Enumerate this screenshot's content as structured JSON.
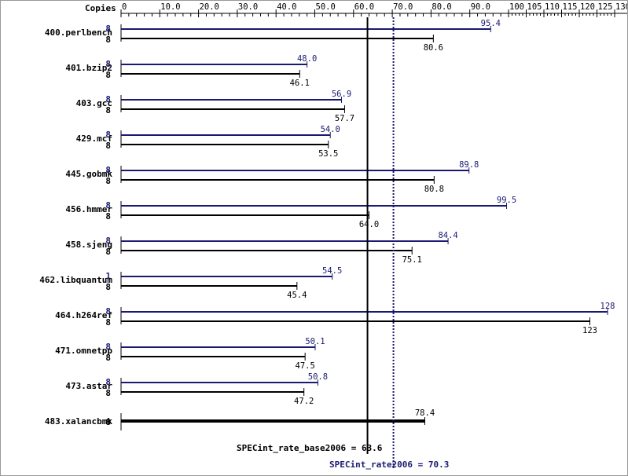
{
  "chart_data": {
    "type": "bar",
    "axis_title": "Copies",
    "xlim": [
      0,
      130
    ],
    "ticks": [
      "0",
      "10.0",
      "20.0",
      "30.0",
      "40.0",
      "50.0",
      "60.0",
      "70.0",
      "80.0",
      "90.0",
      "100",
      "105",
      "110",
      "115",
      "120",
      "125",
      "130"
    ],
    "tick_values": [
      0,
      10,
      20,
      30,
      40,
      50,
      60,
      70,
      80,
      90,
      100,
      105,
      110,
      115,
      120,
      125,
      130
    ],
    "benchmarks": [
      {
        "name": "400.perlbench",
        "base_copies": "8",
        "base": 80.6,
        "base_label": "80.6",
        "peak_copies": "8",
        "peak": 95.4,
        "peak_label": "95.4"
      },
      {
        "name": "401.bzip2",
        "base_copies": "8",
        "base": 46.1,
        "base_label": "46.1",
        "peak_copies": "8",
        "peak": 48.0,
        "peak_label": "48.0"
      },
      {
        "name": "403.gcc",
        "base_copies": "8",
        "base": 57.7,
        "base_label": "57.7",
        "peak_copies": "8",
        "peak": 56.9,
        "peak_label": "56.9"
      },
      {
        "name": "429.mcf",
        "base_copies": "8",
        "base": 53.5,
        "base_label": "53.5",
        "peak_copies": "8",
        "peak": 54.0,
        "peak_label": "54.0"
      },
      {
        "name": "445.gobmk",
        "base_copies": "8",
        "base": 80.8,
        "base_label": "80.8",
        "peak_copies": "8",
        "peak": 89.8,
        "peak_label": "89.8"
      },
      {
        "name": "456.hmmer",
        "base_copies": "8",
        "base": 64.0,
        "base_label": "64.0",
        "peak_copies": "8",
        "peak": 99.5,
        "peak_label": "99.5"
      },
      {
        "name": "458.sjeng",
        "base_copies": "8",
        "base": 75.1,
        "base_label": "75.1",
        "peak_copies": "8",
        "peak": 84.4,
        "peak_label": "84.4"
      },
      {
        "name": "462.libquantum",
        "base_copies": "8",
        "base": 45.4,
        "base_label": "45.4",
        "peak_copies": "1",
        "peak": 54.5,
        "peak_label": "54.5"
      },
      {
        "name": "464.h264ref",
        "base_copies": "8",
        "base": 123,
        "base_label": "123",
        "peak_copies": "8",
        "peak": 128,
        "peak_label": "128"
      },
      {
        "name": "471.omnetpp",
        "base_copies": "8",
        "base": 47.5,
        "base_label": "47.5",
        "peak_copies": "8",
        "peak": 50.1,
        "peak_label": "50.1"
      },
      {
        "name": "473.astar",
        "base_copies": "8",
        "base": 47.2,
        "base_label": "47.2",
        "peak_copies": "8",
        "peak": 50.8,
        "peak_label": "50.8"
      },
      {
        "name": "483.xalancbmk",
        "base_copies": "8",
        "base": 78.4,
        "base_label": "78.4",
        "peak_copies": null,
        "peak": null,
        "peak_label": null
      }
    ],
    "base_metric": {
      "label": "SPECint_rate_base2006 = 63.6",
      "value": 63.6
    },
    "peak_metric": {
      "label": "SPECint_rate2006 = 70.3",
      "value": 70.3
    },
    "colors": {
      "base": "#000000",
      "peak": "#191970"
    }
  }
}
